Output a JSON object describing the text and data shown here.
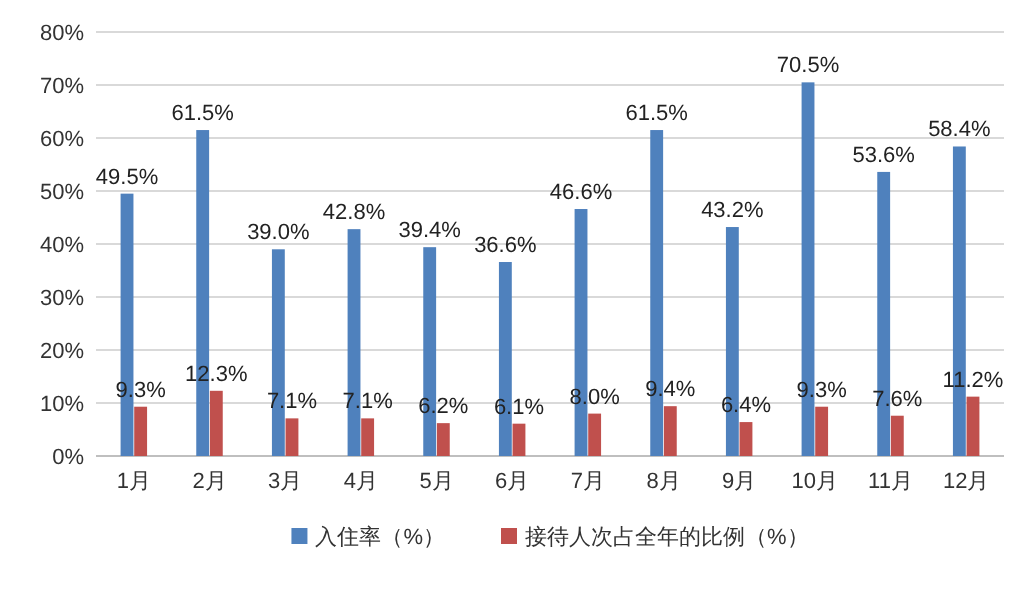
{
  "chart_data": {
    "type": "bar",
    "categories": [
      "1月",
      "2月",
      "3月",
      "4月",
      "5月",
      "6月",
      "7月",
      "8月",
      "9月",
      "10月",
      "11月",
      "12月"
    ],
    "series": [
      {
        "name": "入住率（%）",
        "color": "#4f81bd",
        "values": [
          49.5,
          61.5,
          39.0,
          42.8,
          39.4,
          36.6,
          46.6,
          61.5,
          43.2,
          70.5,
          53.6,
          58.4
        ],
        "value_labels": [
          "49.5%",
          "61.5%",
          "39.0%",
          "42.8%",
          "39.4%",
          "36.6%",
          "46.6%",
          "61.5%",
          "43.2%",
          "70.5%",
          "53.6%",
          "58.4%"
        ]
      },
      {
        "name": "接待人次占全年的比例（%）",
        "color": "#c0504d",
        "values": [
          9.3,
          12.3,
          7.1,
          7.1,
          6.2,
          6.1,
          8.0,
          9.4,
          6.4,
          9.3,
          7.6,
          11.2
        ],
        "value_labels": [
          "9.3%",
          "12.3%",
          "7.1%",
          "7.1%",
          "6.2%",
          "6.1%",
          "8.0%",
          "9.4%",
          "6.4%",
          "9.3%",
          "7.6%",
          "11.2%"
        ]
      }
    ],
    "ylim": [
      0,
      80
    ],
    "yticks": [
      {
        "value": 0,
        "label": "0%"
      },
      {
        "value": 10,
        "label": "10%"
      },
      {
        "value": 20,
        "label": "20%"
      },
      {
        "value": 30,
        "label": "30%"
      },
      {
        "value": 40,
        "label": "40%"
      },
      {
        "value": 50,
        "label": "50%"
      },
      {
        "value": 60,
        "label": "60%"
      },
      {
        "value": 70,
        "label": "70%"
      },
      {
        "value": 80,
        "label": "80%"
      }
    ],
    "grid": "y",
    "legend": "bottom"
  }
}
